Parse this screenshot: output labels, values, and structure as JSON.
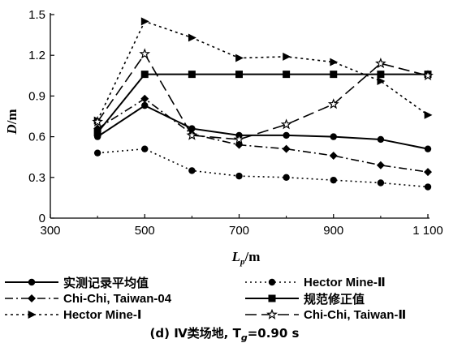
{
  "chart_data": {
    "type": "line",
    "xlabel": "L",
    "xlabel_sub": "p",
    "xlabel_unit": "/m",
    "ylabel": "D",
    "ylabel_unit": "/m",
    "xlim": [
      300,
      1100
    ],
    "ylim": [
      0,
      1.5
    ],
    "xticks": [
      300,
      500,
      700,
      900,
      1100
    ],
    "xtick_labels": [
      "300",
      "500",
      "700",
      "900",
      "1 100"
    ],
    "yticks": [
      0,
      0.3,
      0.6,
      0.9,
      1.2,
      1.5
    ],
    "ytick_labels": [
      "0",
      "0.3",
      "0.6",
      "0.9",
      "1.2",
      "1.5"
    ],
    "x": [
      400,
      500,
      600,
      700,
      800,
      900,
      1000,
      1100
    ],
    "series": [
      {
        "name": "实测记录平均值",
        "style": "solid",
        "marker": "circle",
        "values": [
          0.6,
          0.83,
          0.66,
          0.61,
          0.61,
          0.6,
          0.58,
          0.51
        ]
      },
      {
        "name": "Hector Mine-Ⅱ",
        "style": "dotted",
        "marker": "circle",
        "values": [
          0.48,
          0.51,
          0.35,
          0.31,
          0.3,
          0.28,
          0.26,
          0.23
        ]
      },
      {
        "name": "Chi-Chi, Taiwan-04",
        "style": "dashdot",
        "marker": "diamond",
        "values": [
          0.66,
          0.88,
          0.62,
          0.54,
          0.51,
          0.46,
          0.39,
          0.34
        ]
      },
      {
        "name": "规范修正值",
        "style": "solid",
        "marker": "square",
        "values": [
          0.63,
          1.06,
          1.06,
          1.06,
          1.06,
          1.06,
          1.06,
          1.06
        ]
      },
      {
        "name": "Hector Mine-Ⅰ",
        "style": "dotted2",
        "marker": "triangle",
        "values": [
          0.72,
          1.45,
          1.33,
          1.18,
          1.19,
          1.15,
          1.01,
          0.76
        ]
      },
      {
        "name": "Chi-Chi, Taiwan-Ⅱ",
        "style": "longdash",
        "marker": "star",
        "values": [
          0.71,
          1.21,
          0.61,
          0.58,
          0.69,
          0.84,
          1.14,
          1.05
        ]
      }
    ],
    "legend_position": "bottom",
    "caption": "(d)  Ⅳ类场地, T",
    "caption_sub": "g",
    "caption_tail": "=0.90 s"
  }
}
